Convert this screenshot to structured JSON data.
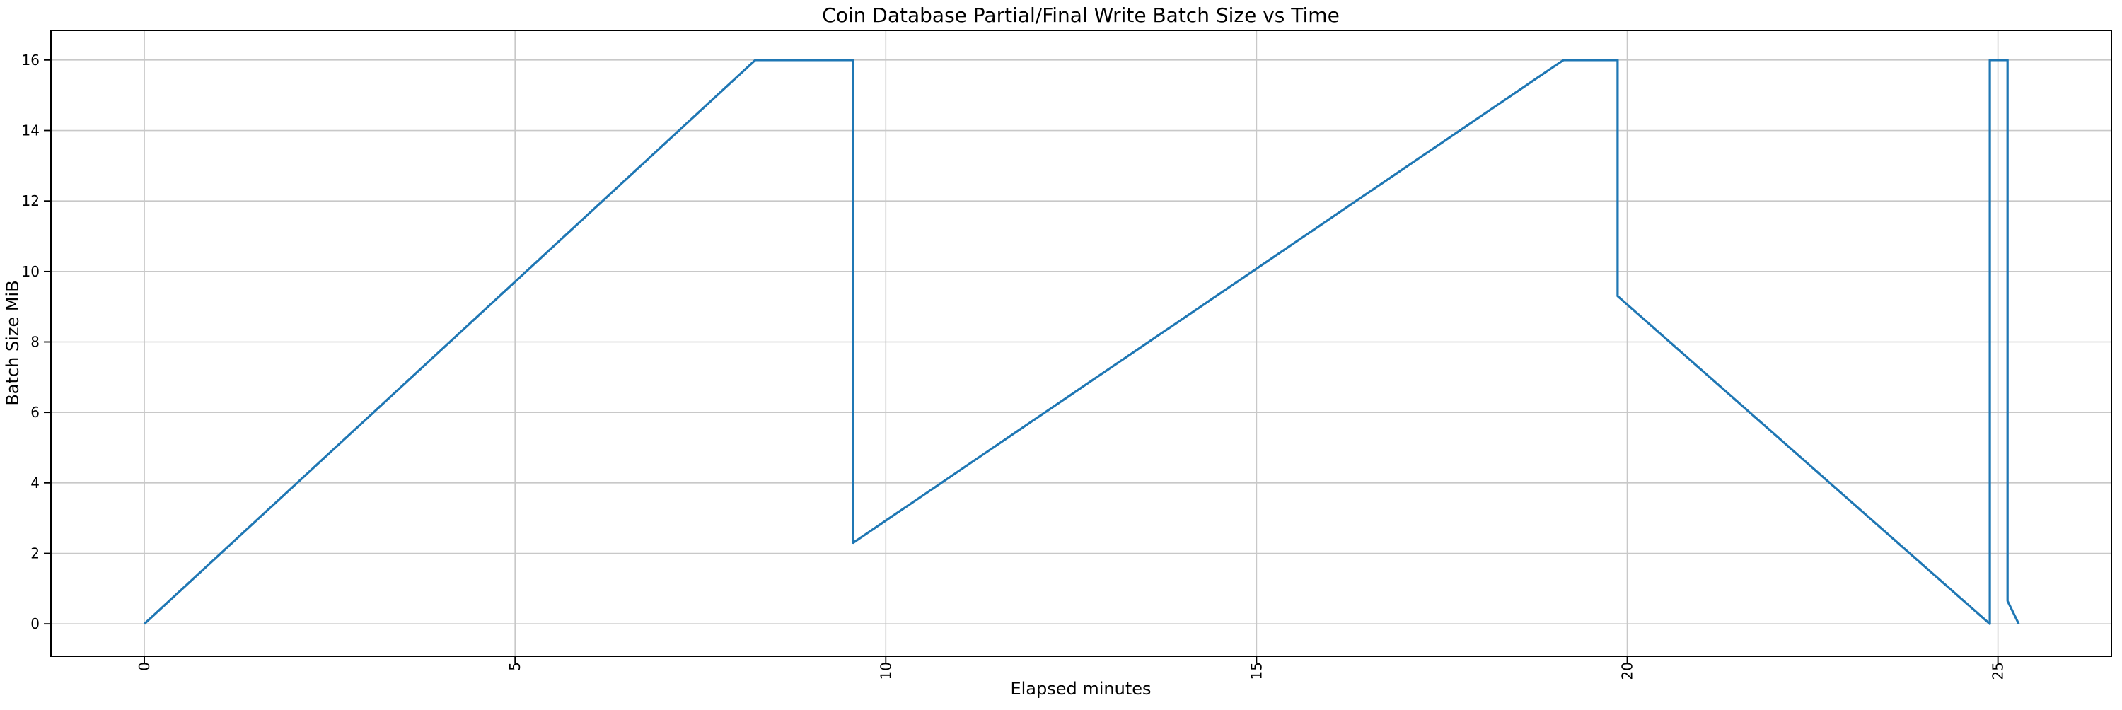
{
  "chart_data": {
    "type": "line",
    "title": "Coin Database Partial/Final Write Batch Size vs Time",
    "xlabel": "Elapsed minutes",
    "ylabel": "Batch Size MiB",
    "xticks": [
      0,
      5,
      10,
      15,
      20,
      25
    ],
    "yticks": [
      0,
      2,
      4,
      6,
      8,
      10,
      12,
      14,
      16
    ],
    "xlim": [
      -1.26,
      26.53
    ],
    "ylim": [
      -0.92,
      16.84
    ],
    "grid": true,
    "legend_position": "none",
    "line_color": "#1f77b4",
    "grid_color": "#c8c8c8",
    "spine_color": "#000000",
    "series": [
      {
        "name": "batch-size-mib",
        "points": [
          [
            0,
            0
          ],
          [
            8.24,
            16
          ],
          [
            9.56,
            16
          ],
          [
            9.56,
            2.3
          ],
          [
            19.14,
            16
          ],
          [
            19.87,
            16
          ],
          [
            19.87,
            9.3
          ],
          [
            24.89,
            0
          ],
          [
            24.89,
            16
          ],
          [
            25.13,
            16
          ],
          [
            25.13,
            0.65
          ],
          [
            25.28,
            0
          ]
        ]
      }
    ]
  }
}
